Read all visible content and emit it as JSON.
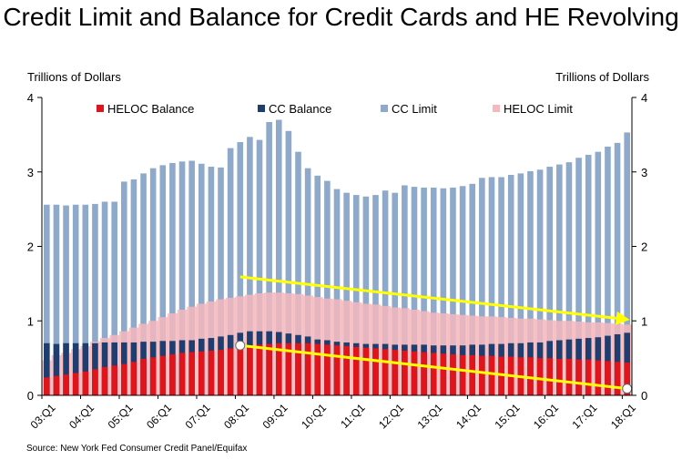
{
  "title": "Credit Limit and Balance for Credit Cards and HE Revolving",
  "ylabel_left": "Trillions of Dollars",
  "ylabel_right": "Trillions of Dollars",
  "source": "Source: New York Fed Consumer Credit Panel/Equifax",
  "colors": {
    "heloc_balance": "#e0151c",
    "cc_balance": "#1f3d6e",
    "cc_limit": "#8ea9ca",
    "heloc_limit": "#f4b8bd",
    "arrow": "#ffff00",
    "plot_bg": "#ffffff"
  },
  "chart_data": {
    "type": "bar",
    "stacked": false,
    "title": "Credit Limit and Balance for Credit Cards and HE Revolving",
    "ylabel": "Trillions of Dollars",
    "ylim": [
      0,
      4
    ],
    "yticks": [
      0,
      1,
      2,
      3,
      4
    ],
    "grid": false,
    "legend": "top",
    "x_tick_labels": [
      "03:Q1",
      "04:Q1",
      "05:Q1",
      "06:Q1",
      "07:Q1",
      "08:Q1",
      "09:Q1",
      "10:Q1",
      "11:Q1",
      "12:Q1",
      "13:Q1",
      "14:Q1",
      "15:Q1",
      "16:Q1",
      "17:Q1",
      "18:Q1"
    ],
    "quarters": [
      "03:Q1",
      "03:Q2",
      "03:Q3",
      "03:Q4",
      "04:Q1",
      "04:Q2",
      "04:Q3",
      "04:Q4",
      "05:Q1",
      "05:Q2",
      "05:Q3",
      "05:Q4",
      "06:Q1",
      "06:Q2",
      "06:Q3",
      "06:Q4",
      "07:Q1",
      "07:Q2",
      "07:Q3",
      "07:Q4",
      "08:Q1",
      "08:Q2",
      "08:Q3",
      "08:Q4",
      "09:Q1",
      "09:Q2",
      "09:Q3",
      "09:Q4",
      "10:Q1",
      "10:Q2",
      "10:Q3",
      "10:Q4",
      "11:Q1",
      "11:Q2",
      "11:Q3",
      "11:Q4",
      "12:Q1",
      "12:Q2",
      "12:Q3",
      "12:Q4",
      "13:Q1",
      "13:Q2",
      "13:Q3",
      "13:Q4",
      "14:Q1",
      "14:Q2",
      "14:Q3",
      "14:Q4",
      "15:Q1",
      "15:Q2",
      "15:Q3",
      "15:Q4",
      "16:Q1",
      "16:Q2",
      "16:Q3",
      "16:Q4",
      "17:Q1",
      "17:Q2",
      "17:Q3",
      "17:Q4",
      "18:Q1"
    ],
    "series": [
      {
        "name": "HELOC Balance",
        "values": [
          0.24,
          0.26,
          0.28,
          0.3,
          0.32,
          0.35,
          0.38,
          0.4,
          0.42,
          0.45,
          0.49,
          0.51,
          0.53,
          0.55,
          0.57,
          0.58,
          0.59,
          0.6,
          0.61,
          0.63,
          0.65,
          0.67,
          0.68,
          0.69,
          0.7,
          0.7,
          0.7,
          0.7,
          0.69,
          0.68,
          0.67,
          0.66,
          0.65,
          0.64,
          0.63,
          0.62,
          0.61,
          0.6,
          0.59,
          0.58,
          0.57,
          0.56,
          0.55,
          0.54,
          0.54,
          0.53,
          0.53,
          0.52,
          0.52,
          0.51,
          0.51,
          0.5,
          0.5,
          0.49,
          0.49,
          0.48,
          0.48,
          0.47,
          0.46,
          0.45,
          0.44
        ]
      },
      {
        "name": "CC Balance",
        "values": [
          0.7,
          0.69,
          0.7,
          0.7,
          0.7,
          0.7,
          0.71,
          0.71,
          0.71,
          0.71,
          0.72,
          0.72,
          0.73,
          0.73,
          0.74,
          0.74,
          0.76,
          0.77,
          0.79,
          0.81,
          0.84,
          0.86,
          0.86,
          0.86,
          0.85,
          0.83,
          0.81,
          0.79,
          0.75,
          0.74,
          0.72,
          0.71,
          0.7,
          0.69,
          0.69,
          0.69,
          0.68,
          0.68,
          0.68,
          0.68,
          0.67,
          0.67,
          0.67,
          0.67,
          0.68,
          0.68,
          0.69,
          0.69,
          0.7,
          0.7,
          0.71,
          0.71,
          0.73,
          0.74,
          0.75,
          0.76,
          0.77,
          0.78,
          0.8,
          0.82,
          0.84
        ]
      },
      {
        "name": "CC Limit",
        "values": [
          2.56,
          2.56,
          2.55,
          2.56,
          2.56,
          2.57,
          2.6,
          2.6,
          2.87,
          2.9,
          2.98,
          3.05,
          3.09,
          3.12,
          3.14,
          3.15,
          3.11,
          3.07,
          3.06,
          3.32,
          3.4,
          3.47,
          3.43,
          3.67,
          3.7,
          3.55,
          3.27,
          3.05,
          2.95,
          2.88,
          2.77,
          2.72,
          2.69,
          2.67,
          2.69,
          2.75,
          2.72,
          2.82,
          2.8,
          2.79,
          2.79,
          2.78,
          2.79,
          2.81,
          2.84,
          2.92,
          2.93,
          2.93,
          2.96,
          2.98,
          3.01,
          3.03,
          3.07,
          3.1,
          3.13,
          3.19,
          3.23,
          3.27,
          3.34,
          3.39,
          3.53
        ]
      },
      {
        "name": "HELOC Limit",
        "values": [
          0.47,
          0.54,
          0.57,
          0.62,
          0.66,
          0.72,
          0.77,
          0.81,
          0.86,
          0.91,
          0.96,
          1.0,
          1.05,
          1.1,
          1.15,
          1.19,
          1.23,
          1.26,
          1.29,
          1.31,
          1.33,
          1.35,
          1.37,
          1.38,
          1.38,
          1.37,
          1.36,
          1.34,
          1.32,
          1.3,
          1.29,
          1.27,
          1.25,
          1.23,
          1.22,
          1.2,
          1.18,
          1.17,
          1.15,
          1.13,
          1.11,
          1.1,
          1.09,
          1.08,
          1.07,
          1.06,
          1.06,
          1.05,
          1.04,
          1.03,
          1.03,
          1.02,
          1.01,
          1.0,
          1.0,
          0.99,
          0.98,
          0.98,
          0.97,
          0.96,
          0.95
        ]
      }
    ],
    "trend_arrows": [
      {
        "from": {
          "x": "08:Q1",
          "y": 1.59
        },
        "to": {
          "x": "18:Q1",
          "y": 1.02
        }
      },
      {
        "from": {
          "x": "08:Q1",
          "y": 0.67
        },
        "to": {
          "x": "18:Q1",
          "y": 0.09
        }
      }
    ]
  }
}
